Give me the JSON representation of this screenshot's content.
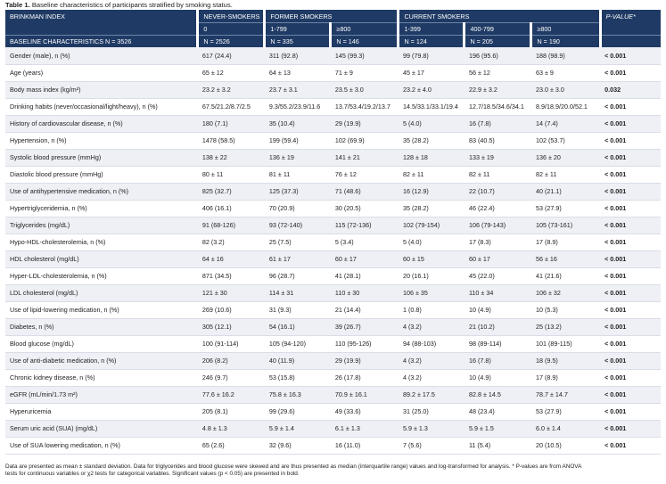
{
  "caption": {
    "label": "Table 1.",
    "text": "Baseline characteristics of participants stratified by smoking status."
  },
  "header": {
    "row1": [
      "BRINKMAN INDEX",
      "NEVER-SMOKERS",
      "FORMER SMOKERS",
      "CURRENT SMOKERS",
      "P-VALUE*"
    ],
    "row2": [
      "0",
      "1-799",
      "≥800",
      "1-399",
      "400-799",
      "≥800"
    ],
    "row3": [
      "BASELINE CHARACTERISTICS N = 3526",
      "N = 2526",
      "N = 335",
      "N = 146",
      "N = 124",
      "N = 205",
      "N = 190"
    ]
  },
  "rows": [
    [
      "Gender (male), n (%)",
      "617 (24.4)",
      "311 (92.8)",
      "145 (99.3)",
      "99 (79.8)",
      "196 (95.6)",
      "188 (98.9)",
      "< 0.001"
    ],
    [
      "Age (years)",
      "65 ± 12",
      "64 ± 13",
      "71 ± 9",
      "45 ± 17",
      "56 ± 12",
      "63 ± 9",
      "< 0.001"
    ],
    [
      "Body mass index (kg/m²)",
      "23.2 ± 3.2",
      "23.7 ± 3.1",
      "23.5 ± 3.0",
      "23.2 ± 4.0",
      "22.9 ± 3.2",
      "23.0 ± 3.0",
      "0.032"
    ],
    [
      "Drinking habits (never/occasional/light/heavy), n (%)",
      "67.5/21.2/8.7/2.5",
      "9.3/55.2/23.9/11.6",
      "13.7/53.4/19.2/13.7",
      "14.5/33.1/33.1/19.4",
      "12.7/18.5/34.6/34.1",
      "8.9/18.9/20.0/52.1",
      "< 0.001"
    ],
    [
      "History of cardiovascular disease, n (%)",
      "180 (7.1)",
      "35 (10.4)",
      "29 (19.9)",
      "5 (4.0)",
      "16 (7.8)",
      "14 (7.4)",
      "< 0.001"
    ],
    [
      "Hypertension, n (%)",
      "1478 (58.5)",
      "199 (59.4)",
      "102 (69.9)",
      "35 (28.2)",
      "83 (40.5)",
      "102 (53.7)",
      "< 0.001"
    ],
    [
      "Systolic blood pressure (mmHg)",
      "138 ± 22",
      "136 ± 19",
      "141 ± 21",
      "128 ± 18",
      "133 ± 19",
      "136 ± 20",
      "< 0.001"
    ],
    [
      "Diastolic blood pressure (mmHg)",
      "80 ± 11",
      "81 ± 11",
      "76 ± 12",
      "82 ± 11",
      "82 ± 11",
      "82 ± 11",
      "< 0.001"
    ],
    [
      "Use of antihypertensive medication, n (%)",
      "825 (32.7)",
      "125 (37.3)",
      "71 (48.6)",
      "16 (12.9)",
      "22 (10.7)",
      "40 (21.1)",
      "< 0.001"
    ],
    [
      "Hypertriglyceridemia, n (%)",
      "406 (16.1)",
      "70 (20.9)",
      "30 (20.5)",
      "35 (28.2)",
      "46 (22.4)",
      "53 (27.9)",
      "< 0.001"
    ],
    [
      "Triglycerides (mg/dL)",
      "91 (68-126)",
      "93 (72-140)",
      "115 (72-136)",
      "102 (79-154)",
      "106 (79-143)",
      "105 (73-161)",
      "< 0.001"
    ],
    [
      "Hypo-HDL-cholesterolemia, n (%)",
      "82 (3.2)",
      "25 (7.5)",
      "5 (3.4)",
      "5 (4.0)",
      "17 (8.3)",
      "17 (8.9)",
      "< 0.001"
    ],
    [
      "HDL cholesterol (mg/dL)",
      "64 ± 16",
      "61 ± 17",
      "60 ± 17",
      "60 ± 15",
      "60 ± 17",
      "56 ± 16",
      "< 0.001"
    ],
    [
      "Hyper-LDL-cholesterolemia, n (%)",
      "871 (34.5)",
      "96 (28.7)",
      "41 (28.1)",
      "20 (16.1)",
      "45 (22.0)",
      "41 (21.6)",
      "< 0.001"
    ],
    [
      "LDL cholesterol (mg/dL)",
      "121 ± 30",
      "114 ± 31",
      "110 ± 30",
      "106 ± 35",
      "110 ± 34",
      "106 ± 32",
      "< 0.001"
    ],
    [
      "Use of lipid-lowering medication, n (%)",
      "269 (10.6)",
      "31 (9.3)",
      "21 (14.4)",
      "1 (0.8)",
      "10 (4.9)",
      "10 (5.3)",
      "< 0.001"
    ],
    [
      "Diabetes, n (%)",
      "305 (12.1)",
      "54 (16.1)",
      "39 (26.7)",
      "4 (3.2)",
      "21 (10.2)",
      "25 (13.2)",
      "< 0.001"
    ],
    [
      "Blood glucose (mg/dL)",
      "100 (91-114)",
      "105 (94-120)",
      "110 (95-126)",
      "94 (88-103)",
      "98 (89-114)",
      "101 (89-115)",
      "< 0.001"
    ],
    [
      "Use of anti-diabetic medication, n (%)",
      "206 (8.2)",
      "40 (11.9)",
      "29 (19.9)",
      "4 (3.2)",
      "16 (7.8)",
      "18 (9.5)",
      "< 0.001"
    ],
    [
      "Chronic kidney disease, n (%)",
      "246 (9.7)",
      "53 (15.8)",
      "26 (17.8)",
      "4 (3.2)",
      "10 (4.9)",
      "17 (8.9)",
      "< 0.001"
    ],
    [
      "eGFR (mL/min/1.73 m²)",
      "77.6 ± 16.2",
      "75.8 ± 16.3",
      "70.9 ± 16.1",
      "89.2 ± 17.5",
      "82.8 ± 14.5",
      "78.7 ± 14.7",
      "< 0.001"
    ],
    [
      "Hyperuricemia",
      "205 (8.1)",
      "99 (29.6)",
      "49 (33.6)",
      "31 (25.0)",
      "48 (23.4)",
      "53 (27.9)",
      "< 0.001"
    ],
    [
      "Serum uric acid (SUA) (mg/dL)",
      "4.8 ± 1.3",
      "5.9 ± 1.4",
      "6.1 ± 1.3",
      "5.9 ± 1.3",
      "5.9 ± 1.5",
      "6.0 ± 1.4",
      "< 0.001"
    ],
    [
      "Use of SUA lowering medication, n (%)",
      "65 (2.6)",
      "32 (9.6)",
      "16 (11.0)",
      "7 (5.6)",
      "11 (5.4)",
      "20 (10.5)",
      "< 0.001"
    ]
  ],
  "footnote": {
    "line1": "Data are presented as mean ± standard deviation. Data for triglycerides and blood glucose were skewed and are thus presented as median (interquartile range) values and log-transformed for analysis. * P-values are from ANOVA",
    "line2": "tests for continuous variables or χ2 tests for categorical variables. Significant values (p < 0.05) are presented in bold."
  },
  "colors": {
    "header_bg": "#1f3a64",
    "stripe": "#eef0f5"
  }
}
